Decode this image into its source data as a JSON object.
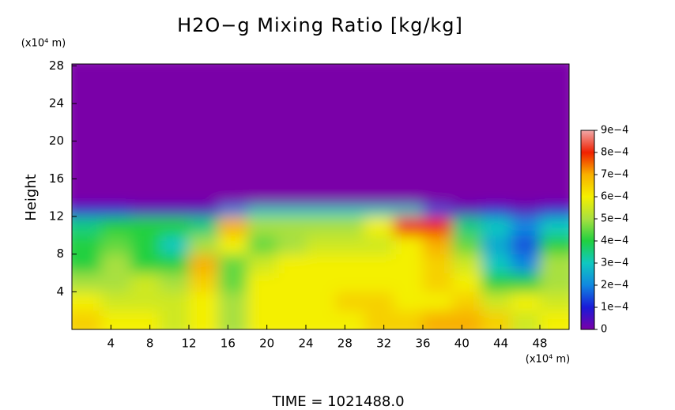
{
  "chart_data": {
    "type": "heatmap",
    "title": "H2O−g Mixing Ratio [kg/kg]",
    "ylabel": "Height",
    "yunit": "(x10⁴ m)",
    "xunit": "(x10⁴ m)",
    "footer": "TIME = 1021488.0",
    "xlim": [
      0,
      51
    ],
    "ylim": [
      0,
      28.2
    ],
    "xticks": [
      4,
      8,
      12,
      16,
      20,
      24,
      28,
      32,
      36,
      40,
      44,
      48
    ],
    "yticks": [
      4,
      8,
      12,
      16,
      20,
      24,
      28
    ],
    "x_edges": [
      0,
      3,
      6,
      9,
      12,
      15,
      18,
      21,
      24,
      27,
      30,
      33,
      36,
      39,
      42,
      45,
      48,
      51
    ],
    "y_edges": [
      0,
      2,
      4,
      6,
      8,
      10,
      12,
      13.2,
      28.2
    ],
    "values": [
      [
        0.00065,
        0.0006,
        0.0006,
        0.00055,
        0.0006,
        0.0005,
        0.0006,
        0.0006,
        0.0006,
        0.0006,
        0.00065,
        0.00065,
        0.0007,
        0.0007,
        0.00065,
        0.00055,
        0.0006
      ],
      [
        0.0006,
        0.00055,
        0.00055,
        0.00055,
        0.0006,
        0.0005,
        0.0006,
        0.0006,
        0.0006,
        0.00065,
        0.00065,
        0.0006,
        0.0006,
        0.00065,
        0.00055,
        0.0006,
        0.00055
      ],
      [
        0.0005,
        0.0005,
        0.00055,
        0.0005,
        0.00065,
        0.00045,
        0.0006,
        0.0006,
        0.0006,
        0.0006,
        0.0006,
        0.0006,
        0.00065,
        0.0006,
        0.0004,
        0.0004,
        0.0005
      ],
      [
        0.0004,
        0.0005,
        0.0004,
        0.0004,
        0.0007,
        0.00045,
        0.00055,
        0.0006,
        0.0006,
        0.0006,
        0.0006,
        0.0006,
        0.00065,
        0.00055,
        0.0003,
        0.0002,
        0.0005
      ],
      [
        0.0004,
        0.00045,
        0.0004,
        0.0003,
        0.0005,
        0.0006,
        0.00045,
        0.0005,
        0.00055,
        0.00055,
        0.00055,
        0.0006,
        0.0007,
        0.00045,
        0.00025,
        0.00015,
        0.0004
      ],
      [
        0.00035,
        0.0004,
        0.0004,
        0.0004,
        0.00035,
        0.0007,
        0.0005,
        0.0005,
        0.0005,
        0.0005,
        0.0006,
        0.0008,
        0.0008,
        0.00035,
        0.0003,
        0.0002,
        0.0003
      ],
      [
        0.0001,
        0.0001,
        5e-05,
        5e-05,
        5e-05,
        0.0002,
        0.0003,
        0.0003,
        0.0003,
        0.0003,
        0.0003,
        0.0003,
        0.00015,
        5e-05,
        0.0001,
        5e-05,
        0.0001
      ],
      [
        0,
        0,
        0,
        0,
        0,
        0,
        0,
        0,
        0,
        0,
        0,
        0,
        0,
        0,
        0,
        0,
        0
      ]
    ],
    "clim": [
      0,
      0.0009
    ],
    "cticks": [
      {
        "value": 0,
        "label": "0"
      },
      {
        "value": 0.0001,
        "label": "1e−4"
      },
      {
        "value": 0.0002,
        "label": "2e−4"
      },
      {
        "value": 0.0003,
        "label": "3e−4"
      },
      {
        "value": 0.0004,
        "label": "4e−4"
      },
      {
        "value": 0.0005,
        "label": "5e−4"
      },
      {
        "value": 0.0006,
        "label": "6e−4"
      },
      {
        "value": 0.0007,
        "label": "7e−4"
      },
      {
        "value": 0.0008,
        "label": "8e−4"
      },
      {
        "value": 0.0009,
        "label": "9e−4"
      }
    ],
    "colormap": [
      "#7a00a8",
      "#1a1ad8",
      "#1088e0",
      "#10c8c0",
      "#20d040",
      "#a8e040",
      "#f4f000",
      "#f8b000",
      "#f02000",
      "#f0a8a8"
    ]
  }
}
